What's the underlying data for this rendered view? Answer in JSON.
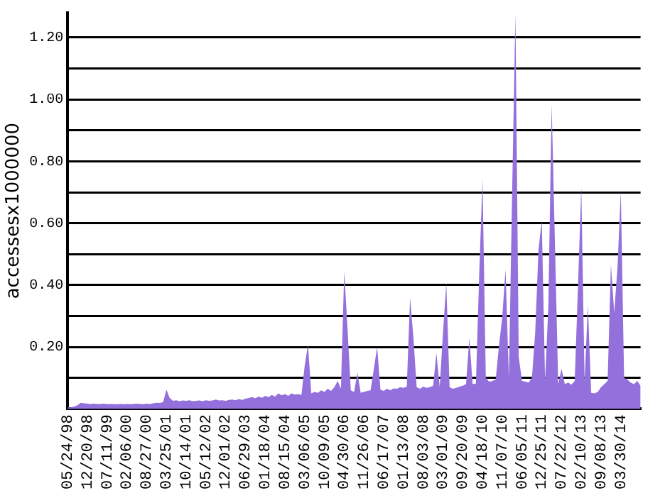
{
  "chart_data": {
    "type": "area",
    "ylabel": "accessesx1000000",
    "categories": [
      "05/24/98",
      null,
      null,
      null,
      null,
      null,
      "12/20/98",
      null,
      null,
      null,
      null,
      null,
      "07/11/99",
      null,
      null,
      null,
      null,
      null,
      "02/06/00",
      null,
      null,
      null,
      null,
      null,
      "08/27/00",
      null,
      null,
      null,
      null,
      null,
      "03/25/01",
      null,
      null,
      null,
      null,
      null,
      "10/14/01",
      null,
      null,
      null,
      null,
      null,
      "05/12/02",
      null,
      null,
      null,
      null,
      null,
      "12/01/02",
      null,
      null,
      null,
      null,
      null,
      "06/29/03",
      null,
      null,
      null,
      null,
      null,
      "01/18/04",
      null,
      null,
      null,
      null,
      null,
      "08/15/04",
      null,
      null,
      null,
      null,
      null,
      "03/06/05",
      null,
      null,
      null,
      null,
      null,
      "10/09/05",
      null,
      null,
      null,
      null,
      null,
      "04/30/06",
      null,
      null,
      null,
      null,
      null,
      "11/26/06",
      null,
      null,
      null,
      null,
      null,
      "06/17/07",
      null,
      null,
      null,
      null,
      null,
      "01/13/08",
      null,
      null,
      null,
      null,
      null,
      "08/03/08",
      null,
      null,
      null,
      null,
      null,
      "03/01/09",
      null,
      null,
      null,
      null,
      null,
      "09/20/09",
      null,
      null,
      null,
      null,
      null,
      "04/18/10",
      null,
      null,
      null,
      null,
      null,
      "11/07/10",
      null,
      null,
      null,
      null,
      null,
      "06/05/11",
      null,
      null,
      null,
      null,
      null,
      "12/25/11",
      null,
      null,
      null,
      null,
      null,
      "07/22/12",
      null,
      null,
      null,
      null,
      null,
      "02/10/13",
      null,
      null,
      null,
      null,
      null,
      "09/08/13",
      null,
      null,
      null,
      null,
      null,
      "03/30/14",
      null,
      null,
      null,
      null,
      null,
      null
    ],
    "series": [
      {
        "color": "#9370db",
        "values": [
          0.005,
          0.005,
          0.008,
          0.012,
          0.02,
          0.018,
          0.017,
          0.016,
          0.017,
          0.016,
          0.016,
          0.017,
          0.015,
          0.016,
          0.015,
          0.015,
          0.016,
          0.015,
          0.016,
          0.015,
          0.016,
          0.017,
          0.016,
          0.015,
          0.017,
          0.016,
          0.018,
          0.02,
          0.019,
          0.022,
          0.062,
          0.035,
          0.026,
          0.028,
          0.025,
          0.027,
          0.026,
          0.028,
          0.025,
          0.026,
          0.027,
          0.025,
          0.028,
          0.026,
          0.027,
          0.03,
          0.027,
          0.028,
          0.026,
          0.029,
          0.03,
          0.028,
          0.032,
          0.029,
          0.033,
          0.035,
          0.038,
          0.034,
          0.04,
          0.036,
          0.042,
          0.038,
          0.045,
          0.04,
          0.05,
          0.044,
          0.048,
          0.042,
          0.05,
          0.046,
          0.048,
          0.045,
          0.14,
          0.207,
          0.05,
          0.055,
          0.052,
          0.06,
          0.055,
          0.065,
          0.058,
          0.07,
          0.09,
          0.065,
          0.445,
          0.26,
          0.06,
          0.055,
          0.117,
          0.052,
          0.055,
          0.058,
          0.06,
          0.13,
          0.2,
          0.062,
          0.058,
          0.065,
          0.06,
          0.066,
          0.065,
          0.07,
          0.068,
          0.072,
          0.359,
          0.233,
          0.07,
          0.065,
          0.072,
          0.068,
          0.07,
          0.075,
          0.18,
          0.07,
          0.246,
          0.406,
          0.07,
          0.065,
          0.068,
          0.072,
          0.075,
          0.08,
          0.229,
          0.08,
          0.082,
          0.436,
          0.743,
          0.1,
          0.088,
          0.09,
          0.095,
          0.203,
          0.297,
          0.45,
          0.1,
          0.7,
          1.28,
          0.168,
          0.09,
          0.088,
          0.085,
          0.1,
          0.246,
          0.514,
          0.61,
          0.09,
          0.333,
          0.985,
          0.535,
          0.08,
          0.13,
          0.08,
          0.085,
          0.078,
          0.09,
          0.397,
          0.717,
          0.09,
          0.337,
          0.052,
          0.05,
          0.055,
          0.07,
          0.08,
          0.09,
          0.467,
          0.311,
          0.458,
          0.704,
          0.1,
          0.095,
          0.085,
          0.08,
          0.09,
          0.075
        ]
      }
    ],
    "ylim": [
      0,
      1.28
    ],
    "yticks": [
      {
        "value": 0.1,
        "label": null
      },
      {
        "value": 0.2,
        "label": "0.20"
      },
      {
        "value": 0.3,
        "label": null
      },
      {
        "value": 0.4,
        "label": "0.40"
      },
      {
        "value": 0.5,
        "label": null
      },
      {
        "value": 0.6,
        "label": "0.60"
      },
      {
        "value": 0.7,
        "label": null
      },
      {
        "value": 0.8,
        "label": "0.80"
      },
      {
        "value": 0.9,
        "label": null
      },
      {
        "value": 1.0,
        "label": "1.00"
      },
      {
        "value": 1.1,
        "label": null
      },
      {
        "value": 1.2,
        "label": "1.20"
      }
    ],
    "grid": "y",
    "legend": false
  }
}
